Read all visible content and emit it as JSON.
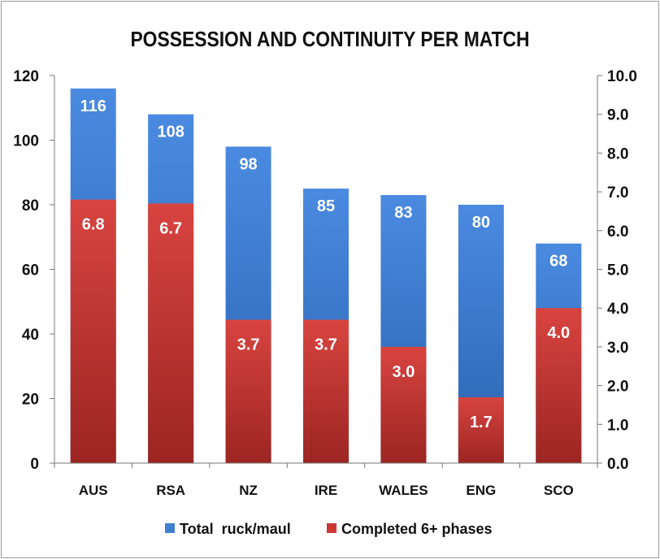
{
  "chart_data": {
    "type": "bar",
    "title": "POSSESSION AND CONTINUITY PER MATCH",
    "categories": [
      "AUS",
      "RSA",
      "NZ",
      "IRE",
      "WALES",
      "ENG",
      "SCO"
    ],
    "series": [
      {
        "name": "Total  ruck/maul",
        "axis": "left",
        "values": [
          116,
          108,
          98,
          85,
          83,
          80,
          68
        ],
        "labels": [
          "116",
          "108",
          "98",
          "85",
          "83",
          "80",
          "68"
        ],
        "color": "#3f7fd0"
      },
      {
        "name": "Completed 6+ phases",
        "axis": "right",
        "values": [
          6.8,
          6.7,
          3.7,
          3.7,
          3.0,
          1.7,
          4.0
        ],
        "labels": [
          "6.8",
          "6.7",
          "3.7",
          "3.7",
          "3.0",
          "1.7",
          "4.0"
        ],
        "color": "#c93a36"
      }
    ],
    "left_axis": {
      "min": 0,
      "max": 120,
      "ticks": [
        "0",
        "20",
        "40",
        "60",
        "80",
        "100",
        "120"
      ]
    },
    "right_axis": {
      "min": 0,
      "max": 10,
      "ticks": [
        "0.0",
        "1.0",
        "2.0",
        "3.0",
        "4.0",
        "5.0",
        "6.0",
        "7.0",
        "8.0",
        "9.0",
        "10.0"
      ]
    },
    "grid": false,
    "legend_position": "bottom"
  }
}
